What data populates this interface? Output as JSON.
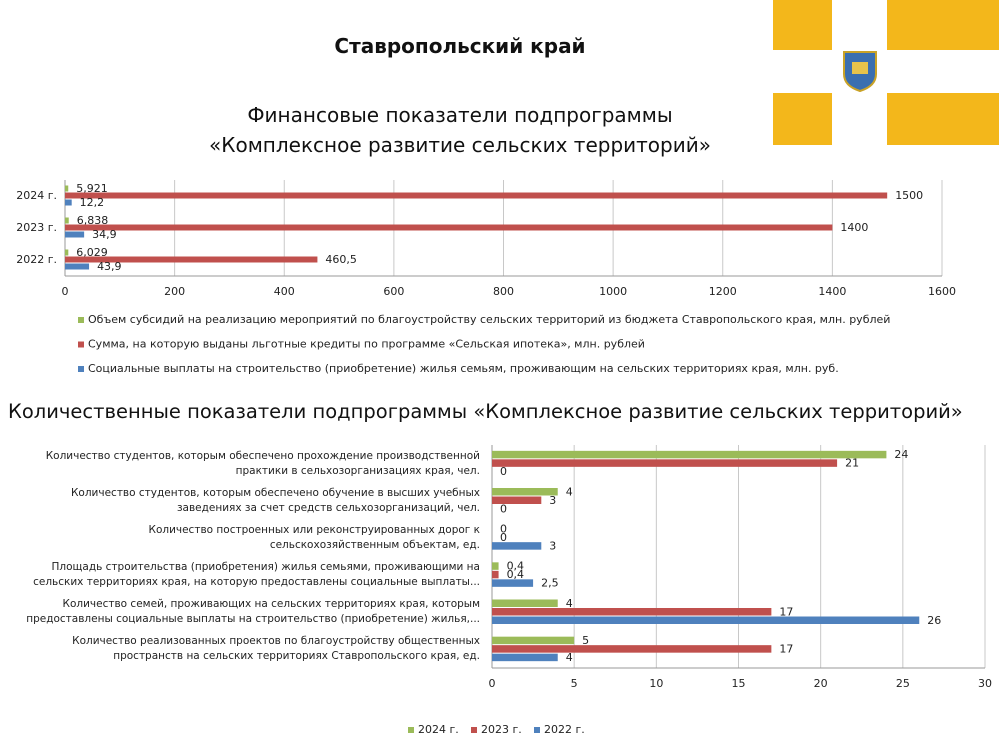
{
  "title": "Ставропольский край",
  "chart_data": [
    {
      "type": "bar",
      "title": "Финансовые показатели подпрограммы\n«Комплексное развитие сельских территорий»",
      "categories": [
        "2024 г.",
        "2023 г.",
        "2022 г."
      ],
      "series": [
        {
          "name": "Объем субсидий на реализацию мероприятий по благоустройству сельских территорий из бюджета Ставропольского края, млн. рублей",
          "color": "#9bbb59",
          "values": [
            5.921,
            6.838,
            6.029
          ],
          "value_labels": [
            "5,921",
            "6,838",
            "6,029"
          ]
        },
        {
          "name": "Сумма, на которую выданы льготные кредиты по программе «Сельская ипотека», млн. рублей",
          "color": "#c0504d",
          "values": [
            1500,
            1400,
            460.5
          ],
          "value_labels": [
            "1500",
            "1400",
            "460,5"
          ]
        },
        {
          "name": "Социальные выплаты на строительство (приобретение) жилья семьям, проживающим на сельских территориях края, млн. руб.",
          "color": "#4f81bd",
          "values": [
            12.2,
            34.9,
            43.9
          ],
          "value_labels": [
            "12,2",
            "34,9",
            "43,9"
          ]
        }
      ],
      "xlim": [
        0,
        1600
      ],
      "xticks": [
        0,
        200,
        400,
        600,
        800,
        1000,
        1200,
        1400,
        1600
      ],
      "grid": true
    },
    {
      "type": "bar",
      "title": "Количественные показатели подпрограммы «Комплексное развитие сельских территорий»",
      "categories": [
        "Количество студентов, которым обеспечено прохождение производственной\nпрактики в сельхозорганизациях края, чел.",
        "Количество студентов, которым обеспечено обучение в высших учебных\nзаведениях за счет средств сельхозорганизаций, чел.",
        "Количество построенных или реконструированных дорог к\nсельскохозяйственным объектам, ед.",
        "Площадь строительства (приобретения) жилья семьями, проживающими на\nсельских территориях края, на которую предоставлены социальные выплаты...",
        "Количество семей, проживающих на сельских территориях края, которым\nпредоставлены социальные выплаты на строительство (приобретение) жилья,...",
        "Количество реализованных проектов по благоустройству общественных\nпространств на сельских территориях Ставропольского края, ед."
      ],
      "series": [
        {
          "name": "2024 г.",
          "color": "#9bbb59",
          "values": [
            24,
            4,
            0,
            0.4,
            4,
            5
          ],
          "value_labels": [
            "24",
            "4",
            "0",
            "0,4",
            "4",
            "5"
          ]
        },
        {
          "name": "2023 г.",
          "color": "#c0504d",
          "values": [
            21,
            3,
            0,
            0.4,
            17,
            17
          ],
          "value_labels": [
            "21",
            "3",
            "0",
            "0,4",
            "17",
            "17"
          ]
        },
        {
          "name": "2022 г.",
          "color": "#4f81bd",
          "values": [
            0,
            0,
            3,
            2.5,
            26,
            4
          ],
          "value_labels": [
            "0",
            "0",
            "3",
            "2,5",
            "26",
            "4"
          ]
        }
      ],
      "xlim": [
        0,
        30
      ],
      "xticks": [
        0,
        5,
        10,
        15,
        20,
        25,
        30
      ],
      "grid": true
    }
  ]
}
